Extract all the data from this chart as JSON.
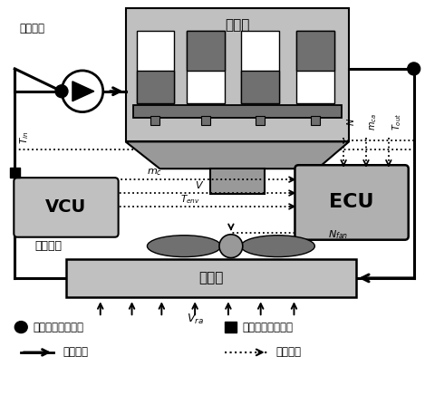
{
  "bg_color": "#ffffff",
  "gray_light": "#c0c0c0",
  "gray_dark": "#707070",
  "gray_medium": "#999999",
  "gray_box": "#b0b0b0",
  "title_engine": "发动机",
  "title_pump": "机械水泵",
  "title_vcu": "VCU",
  "title_ecu": "ECU",
  "title_fan": "电子风扇",
  "title_radiator": "散热器",
  "legend_temp": "冷却液温度传感器",
  "legend_flow": "冷却液流量传感器",
  "legend_coolant": "冷却回路",
  "legend_signal": "信号回路"
}
